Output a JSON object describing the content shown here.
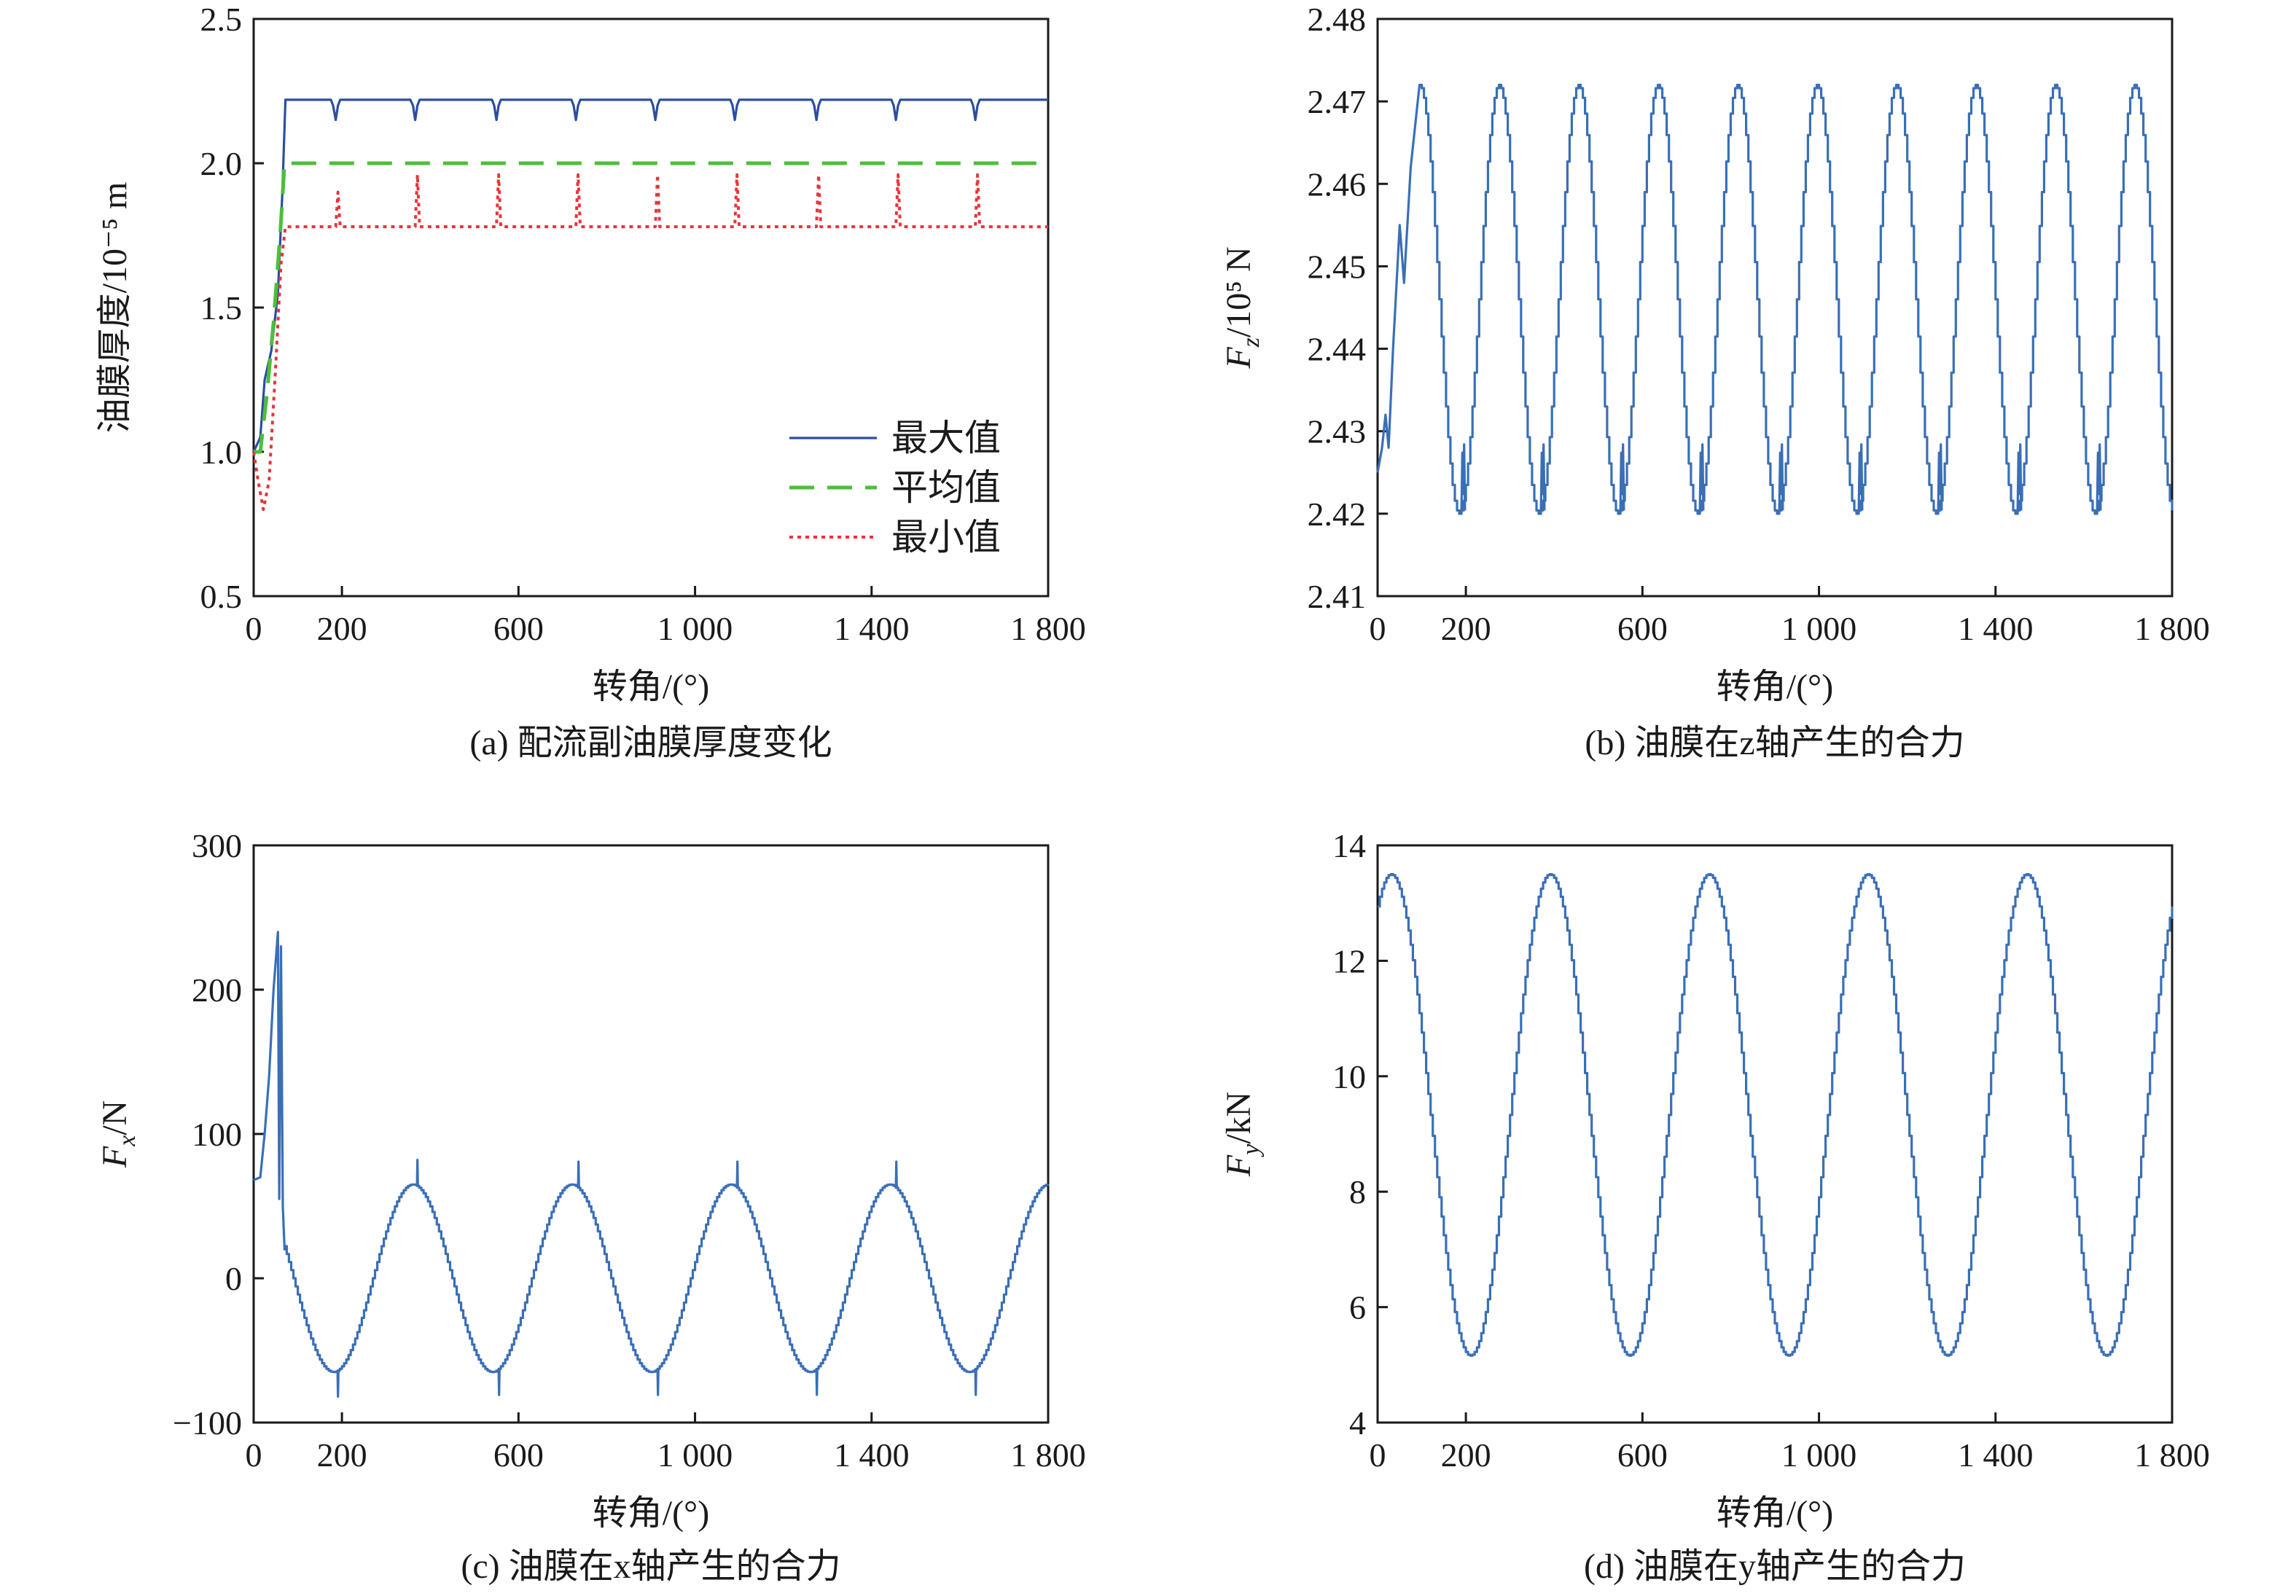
{
  "chart_data": [
    {
      "type": "line",
      "panel": "a",
      "caption": "(a) 配流副油膜厚度变化",
      "xlabel": "转角/(°)",
      "ylabel": "油膜厚度/10⁻⁵ m",
      "xlim": [
        0,
        1800
      ],
      "ylim": [
        0.5,
        2.5
      ],
      "xticks": [
        0,
        200,
        600,
        1000,
        1400,
        1800
      ],
      "xtick_labels": [
        "0",
        "200",
        "600",
        "1 000",
        "1 400",
        "1 800"
      ],
      "yticks": [
        0.5,
        1.0,
        1.5,
        2.0,
        2.5
      ],
      "ytick_labels": [
        "0.5",
        "1.0",
        "1.5",
        "2.0",
        "2.5"
      ],
      "legend_position": "center-right",
      "series": [
        {
          "name": "最大值",
          "color": "#2b4ea3",
          "style": "solid",
          "points": [
            [
              0,
              1.0
            ],
            [
              15,
              1.05
            ],
            [
              25,
              1.25
            ],
            [
              40,
              1.35
            ],
            [
              55,
              1.55
            ],
            [
              65,
              1.9
            ],
            [
              72,
              2.22
            ],
            [
              175,
              2.22
            ],
            [
              180,
              2.2
            ],
            [
              186,
              2.15
            ],
            [
              191,
              2.2
            ],
            [
              196,
              2.22
            ],
            [
              355,
              2.22
            ],
            [
              361,
              2.2
            ],
            [
              366,
              2.15
            ],
            [
              371,
              2.2
            ],
            [
              376,
              2.22
            ],
            [
              540,
              2.22
            ],
            [
              545,
              2.2
            ],
            [
              550,
              2.15
            ],
            [
              555,
              2.2
            ],
            [
              560,
              2.22
            ],
            [
              720,
              2.22
            ],
            [
              725,
              2.2
            ],
            [
              730,
              2.15
            ],
            [
              735,
              2.2
            ],
            [
              740,
              2.22
            ],
            [
              900,
              2.22
            ],
            [
              905,
              2.2
            ],
            [
              910,
              2.15
            ],
            [
              915,
              2.2
            ],
            [
              920,
              2.22
            ],
            [
              1080,
              2.22
            ],
            [
              1085,
              2.2
            ],
            [
              1090,
              2.15
            ],
            [
              1095,
              2.2
            ],
            [
              1100,
              2.22
            ],
            [
              1265,
              2.22
            ],
            [
              1270,
              2.2
            ],
            [
              1275,
              2.15
            ],
            [
              1280,
              2.2
            ],
            [
              1285,
              2.22
            ],
            [
              1445,
              2.22
            ],
            [
              1450,
              2.2
            ],
            [
              1455,
              2.15
            ],
            [
              1460,
              2.2
            ],
            [
              1465,
              2.22
            ],
            [
              1625,
              2.22
            ],
            [
              1630,
              2.2
            ],
            [
              1635,
              2.15
            ],
            [
              1640,
              2.2
            ],
            [
              1645,
              2.22
            ],
            [
              1800,
              2.22
            ]
          ]
        },
        {
          "name": "平均值",
          "color": "#4cbf3a",
          "style": "dashed",
          "points": [
            [
              0,
              1.0
            ],
            [
              15,
              1.0
            ],
            [
              30,
              1.2
            ],
            [
              45,
              1.45
            ],
            [
              60,
              1.75
            ],
            [
              70,
              2.0
            ],
            [
              1800,
              2.0
            ]
          ]
        },
        {
          "name": "最小值",
          "color": "#e8343a",
          "style": "dotted",
          "points": [
            [
              0,
              1.0
            ],
            [
              10,
              0.9
            ],
            [
              22,
              0.8
            ],
            [
              35,
              0.9
            ],
            [
              50,
              1.3
            ],
            [
              62,
              1.65
            ],
            [
              72,
              1.78
            ],
            [
              186,
              1.78
            ],
            [
              191,
              1.9
            ],
            [
              196,
              1.78
            ],
            [
              366,
              1.78
            ],
            [
              371,
              1.96
            ],
            [
              376,
              1.78
            ],
            [
              550,
              1.78
            ],
            [
              555,
              1.96
            ],
            [
              560,
              1.78
            ],
            [
              730,
              1.78
            ],
            [
              735,
              1.96
            ],
            [
              740,
              1.78
            ],
            [
              910,
              1.78
            ],
            [
              915,
              1.96
            ],
            [
              920,
              1.78
            ],
            [
              1090,
              1.78
            ],
            [
              1095,
              1.96
            ],
            [
              1100,
              1.78
            ],
            [
              1275,
              1.78
            ],
            [
              1280,
              1.96
            ],
            [
              1285,
              1.78
            ],
            [
              1455,
              1.78
            ],
            [
              1460,
              1.96
            ],
            [
              1465,
              1.78
            ],
            [
              1635,
              1.78
            ],
            [
              1640,
              1.96
            ],
            [
              1645,
              1.78
            ],
            [
              1800,
              1.78
            ]
          ]
        }
      ]
    },
    {
      "type": "line",
      "panel": "b",
      "caption": "(b) 油膜在z轴产生的合力",
      "xlabel": "转角/(°)",
      "ylabel": "Fz/10⁵ N",
      "xlim": [
        0,
        1800
      ],
      "ylim": [
        2.41,
        2.48
      ],
      "xticks": [
        0,
        200,
        600,
        1000,
        1400,
        1800
      ],
      "xtick_labels": [
        "0",
        "200",
        "600",
        "1 000",
        "1 400",
        "1 800"
      ],
      "yticks": [
        2.41,
        2.42,
        2.43,
        2.44,
        2.45,
        2.46,
        2.47,
        2.48
      ],
      "ytick_labels": [
        "2.41",
        "2.42",
        "2.43",
        "2.44",
        "2.45",
        "2.46",
        "2.47",
        "2.48"
      ],
      "wave": {
        "mean": 2.446,
        "amplitude": 0.026,
        "period": 180,
        "peak_at": 95,
        "phase_start": 0,
        "color": "#3a6fb6"
      },
      "startup": [
        [
          0,
          2.425
        ],
        [
          10,
          2.428
        ],
        [
          18,
          2.432
        ],
        [
          25,
          2.428
        ],
        [
          35,
          2.44
        ],
        [
          50,
          2.455
        ],
        [
          60,
          2.448
        ],
        [
          75,
          2.462
        ],
        [
          95,
          2.472
        ]
      ]
    },
    {
      "type": "line",
      "panel": "c",
      "caption": "(c) 油膜在x轴产生的合力",
      "xlabel": "转角/(°)",
      "ylabel": "Fx/N",
      "xlim": [
        0,
        1800
      ],
      "ylim": [
        -100,
        300
      ],
      "xticks": [
        0,
        200,
        600,
        1000,
        1400,
        1800
      ],
      "xtick_labels": [
        "0",
        "200",
        "600",
        "1 000",
        "1 400",
        "1 800"
      ],
      "yticks": [
        -100,
        0,
        100,
        200,
        300
      ],
      "ytick_labels": [
        "−100",
        "0",
        "100",
        "200",
        "300"
      ],
      "wave": {
        "mean": 0,
        "amplitude": 65,
        "period": 360,
        "peak_at": 360,
        "color": "#3a6fb6"
      },
      "startup": [
        [
          0,
          68
        ],
        [
          15,
          70
        ],
        [
          25,
          100
        ],
        [
          35,
          140
        ],
        [
          45,
          200
        ],
        [
          55,
          240
        ],
        [
          58,
          55
        ],
        [
          62,
          230
        ],
        [
          66,
          50
        ],
        [
          70,
          20
        ]
      ]
    },
    {
      "type": "line",
      "panel": "d",
      "caption": "(d) 油膜在y轴产生的合力",
      "xlabel": "转角/(°)",
      "ylabel": "Fy/kN",
      "xlim": [
        0,
        1800
      ],
      "ylim": [
        4,
        14
      ],
      "xticks": [
        0,
        200,
        600,
        1000,
        1400,
        1800
      ],
      "xtick_labels": [
        "0",
        "200",
        "600",
        "1 000",
        "1 400",
        "1 800"
      ],
      "yticks": [
        4,
        6,
        8,
        10,
        12,
        14
      ],
      "ytick_labels": [
        "4",
        "6",
        "8",
        "10",
        "12",
        "14"
      ],
      "wave": {
        "mean": 9.33,
        "amplitude": 4.17,
        "period": 360,
        "peak_at": 30,
        "color": "#3a6fb6"
      }
    }
  ]
}
